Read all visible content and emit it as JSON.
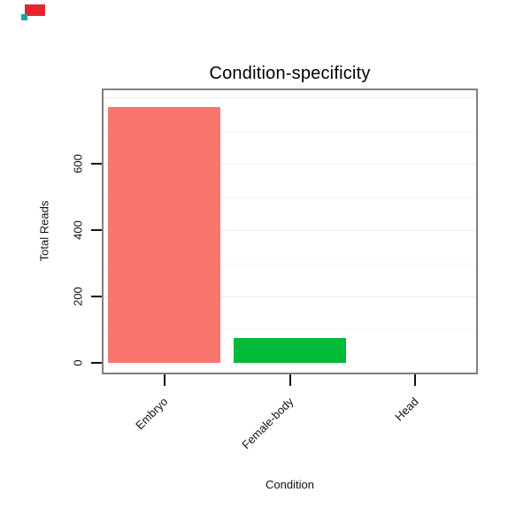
{
  "chart_data": {
    "type": "bar",
    "title": "Condition-specificity",
    "xlabel": "Condition",
    "ylabel": "Total Reads",
    "categories": [
      "Embryo",
      "Female-body",
      "Head"
    ],
    "values": [
      770,
      75,
      0
    ],
    "bar_colors": [
      "#F8766D",
      "#00BA38",
      "#619CFF"
    ],
    "yticks": [
      0,
      200,
      400,
      600
    ],
    "ylim": [
      0,
      770
    ],
    "grid": "horizontal-faint",
    "legend_position": "none",
    "panel_border_color": "#808080",
    "grid_major_color": "#ededed",
    "grid_minor_color": "#f7f7f7",
    "tick_color": "#111111"
  },
  "artifact": {
    "primary_color": "#e8252d",
    "secondary_color": "#1fa79a"
  }
}
